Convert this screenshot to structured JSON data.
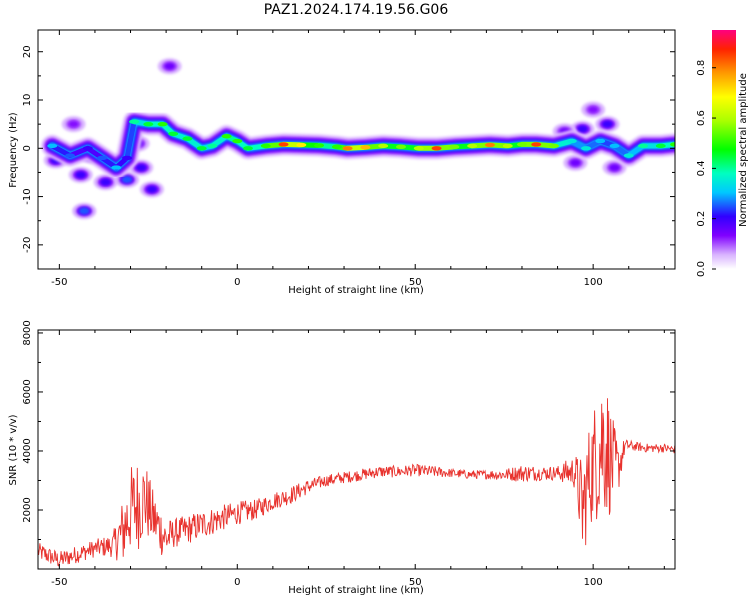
{
  "title": "PAZ1.2024.174.19.56.G06",
  "chart_data": [
    {
      "type": "heatmap",
      "xlabel": "Height of straight line (km)",
      "ylabel": "Frequency (Hz)",
      "xlim": [
        -56,
        123
      ],
      "ylim": [
        -25,
        24.5
      ],
      "xticks": [
        -50,
        0,
        50,
        100
      ],
      "yticks": [
        -20,
        -10,
        0,
        10,
        20
      ],
      "colorbar": {
        "label": "Normalized spectral amplitude",
        "range": [
          0,
          0.95
        ],
        "ticks": [
          0.0,
          0.2,
          0.4,
          0.6,
          0.8
        ],
        "tick_labels": [
          "0.0",
          "0.2",
          "0.4",
          "0.6",
          "0.8"
        ]
      },
      "ridge": [
        {
          "x": -52,
          "f": 0.5,
          "a": 0.3
        },
        {
          "x": -47,
          "f": -1.5,
          "a": 0.25
        },
        {
          "x": -42,
          "f": 0.0,
          "a": 0.2
        },
        {
          "x": -38,
          "f": -2.0,
          "a": 0.25
        },
        {
          "x": -34,
          "f": -4.0,
          "a": 0.3
        },
        {
          "x": -31,
          "f": -2.0,
          "a": 0.2
        },
        {
          "x": -29,
          "f": 5.5,
          "a": 0.4
        },
        {
          "x": -25,
          "f": 5.0,
          "a": 0.45
        },
        {
          "x": -21,
          "f": 5.0,
          "a": 0.5
        },
        {
          "x": -18,
          "f": 3.0,
          "a": 0.45
        },
        {
          "x": -14,
          "f": 2.0,
          "a": 0.45
        },
        {
          "x": -10,
          "f": 0.0,
          "a": 0.45
        },
        {
          "x": -7,
          "f": 0.5,
          "a": 0.4
        },
        {
          "x": -3,
          "f": 2.5,
          "a": 0.5
        },
        {
          "x": 0,
          "f": 1.5,
          "a": 0.5
        },
        {
          "x": 3,
          "f": 0.0,
          "a": 0.45
        },
        {
          "x": 8,
          "f": 0.5,
          "a": 0.5
        },
        {
          "x": 13,
          "f": 0.8,
          "a": 0.85
        },
        {
          "x": 18,
          "f": 0.7,
          "a": 0.7
        },
        {
          "x": 23,
          "f": 0.6,
          "a": 0.5
        },
        {
          "x": 28,
          "f": 0.3,
          "a": 0.5
        },
        {
          "x": 31,
          "f": 0.0,
          "a": 0.8
        },
        {
          "x": 36,
          "f": 0.2,
          "a": 0.75
        },
        {
          "x": 41,
          "f": 0.5,
          "a": 0.6
        },
        {
          "x": 46,
          "f": 0.3,
          "a": 0.55
        },
        {
          "x": 51,
          "f": 0.0,
          "a": 0.6
        },
        {
          "x": 56,
          "f": 0.0,
          "a": 0.85
        },
        {
          "x": 61,
          "f": 0.3,
          "a": 0.55
        },
        {
          "x": 66,
          "f": 0.5,
          "a": 0.6
        },
        {
          "x": 71,
          "f": 0.7,
          "a": 0.8
        },
        {
          "x": 76,
          "f": 0.5,
          "a": 0.6
        },
        {
          "x": 80,
          "f": 0.8,
          "a": 0.55
        },
        {
          "x": 84,
          "f": 0.8,
          "a": 0.85
        },
        {
          "x": 89,
          "f": 0.5,
          "a": 0.55
        },
        {
          "x": 94,
          "f": 1.5,
          "a": 0.35
        },
        {
          "x": 98,
          "f": 0.0,
          "a": 0.35
        },
        {
          "x": 102,
          "f": 1.5,
          "a": 0.3
        },
        {
          "x": 106,
          "f": 0.5,
          "a": 0.3
        },
        {
          "x": 110,
          "f": -1.5,
          "a": 0.35
        },
        {
          "x": 114,
          "f": 0.5,
          "a": 0.4
        },
        {
          "x": 119,
          "f": 0.5,
          "a": 0.45
        },
        {
          "x": 123,
          "f": 0.8,
          "a": 0.5
        }
      ],
      "blobs": [
        {
          "x": -51,
          "f": -2.5,
          "a": 0.15
        },
        {
          "x": -44,
          "f": -5.5,
          "a": 0.15
        },
        {
          "x": -41,
          "f": -1.5,
          "a": 0.2
        },
        {
          "x": -37,
          "f": -7.0,
          "a": 0.15
        },
        {
          "x": -31,
          "f": -6.5,
          "a": 0.2
        },
        {
          "x": -27,
          "f": -4.0,
          "a": 0.15
        },
        {
          "x": -24,
          "f": -8.5,
          "a": 0.15
        },
        {
          "x": -43,
          "f": -13.0,
          "a": 0.2
        },
        {
          "x": -19,
          "f": 17.0,
          "a": 0.1
        },
        {
          "x": -46,
          "f": 5.0,
          "a": 0.08
        },
        {
          "x": -28,
          "f": 1.0,
          "a": 0.12
        },
        {
          "x": 97,
          "f": 4.0,
          "a": 0.15
        },
        {
          "x": 100,
          "f": 8.0,
          "a": 0.08
        },
        {
          "x": 104,
          "f": 5.0,
          "a": 0.15
        },
        {
          "x": 95,
          "f": -3.0,
          "a": 0.1
        },
        {
          "x": 106,
          "f": -4.0,
          "a": 0.1
        },
        {
          "x": 92,
          "f": 3.5,
          "a": 0.1
        }
      ]
    },
    {
      "type": "line",
      "xlabel": "Height of straight line (km)",
      "ylabel": "SNR (10 * v/v)",
      "xlim": [
        -56,
        123
      ],
      "ylim": [
        0,
        8100
      ],
      "xticks": [
        -50,
        0,
        50,
        100
      ],
      "yticks": [
        2000,
        4000,
        6000,
        8000
      ],
      "line_color": "#e8322d",
      "series": [
        {
          "x": [
            -56,
            -50,
            -45,
            -40,
            -35,
            -32,
            -30,
            -28,
            -26,
            -24,
            -22,
            -20,
            -18,
            -15,
            -10,
            -5,
            0,
            5,
            10,
            15,
            20,
            25,
            30,
            35,
            40,
            45,
            50,
            55,
            60,
            65,
            70,
            75,
            80,
            85,
            90,
            95,
            97,
            99,
            101,
            103,
            105,
            107,
            109,
            112,
            115,
            120,
            123
          ],
          "y": [
            600,
            300,
            500,
            700,
            800,
            1300,
            2000,
            2200,
            2400,
            1800,
            1400,
            1000,
            1200,
            1300,
            1500,
            1700,
            1900,
            2000,
            2300,
            2500,
            2800,
            3000,
            3100,
            3200,
            3300,
            3300,
            3350,
            3300,
            3250,
            3200,
            3200,
            3200,
            3250,
            3250,
            3250,
            3300,
            2000,
            3200,
            3800,
            4500,
            3600,
            3400,
            4200,
            4150,
            4100,
            4100,
            4050
          ],
          "noise": [
            300,
            300,
            300,
            300,
            400,
            1200,
            1500,
            1600,
            1400,
            1000,
            900,
            700,
            500,
            500,
            500,
            450,
            400,
            350,
            300,
            300,
            250,
            200,
            200,
            200,
            200,
            200,
            200,
            200,
            150,
            150,
            150,
            200,
            300,
            250,
            250,
            600,
            1800,
            1800,
            2200,
            2800,
            1800,
            900,
            200,
            150,
            150,
            150,
            150
          ]
        }
      ]
    }
  ]
}
